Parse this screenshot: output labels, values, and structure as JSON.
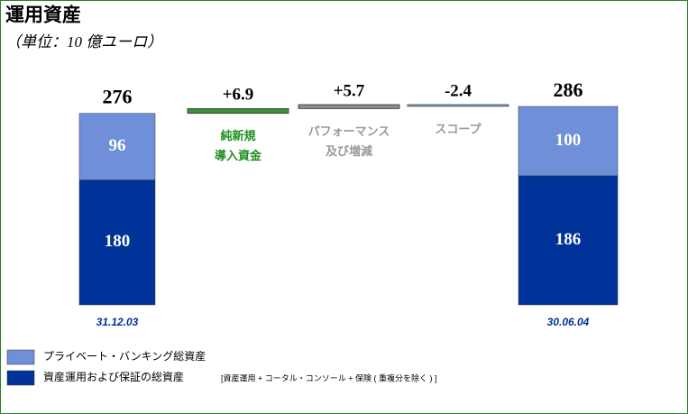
{
  "chart_data": {
    "type": "waterfall",
    "title": "運用資産",
    "subtitle": "（単位：10 億ユーロ）",
    "series": [
      {
        "name": "資産運用および保証の総資産",
        "color": "#003399"
      },
      {
        "name": "プライベート・バンキング総資産",
        "color": "#6f8fd8"
      }
    ],
    "start": {
      "label": "31.12.03",
      "values": [
        180,
        96
      ],
      "total": 276
    },
    "steps": [
      {
        "label": [
          "純新規",
          "導入資金"
        ],
        "value": 6.9,
        "value_label": "+6.9",
        "color": "#3f8f3f",
        "label_color": "#1f8f1f"
      },
      {
        "label": [
          "パフォーマンス",
          "及び増減"
        ],
        "value": 5.7,
        "value_label": "+5.7",
        "color": "#8c8c8c",
        "label_color": "#999999"
      },
      {
        "label": [
          "スコープ"
        ],
        "value": -2.4,
        "color": "#99ccff",
        "label_color": "#999999"
      }
    ],
    "end": {
      "label": "30.06.04",
      "values": [
        186,
        100
      ],
      "total": 286
    },
    "legend_note": "[資産運用 + コータル・コンソール + 保険 ( 重複分を除く ) ]"
  }
}
